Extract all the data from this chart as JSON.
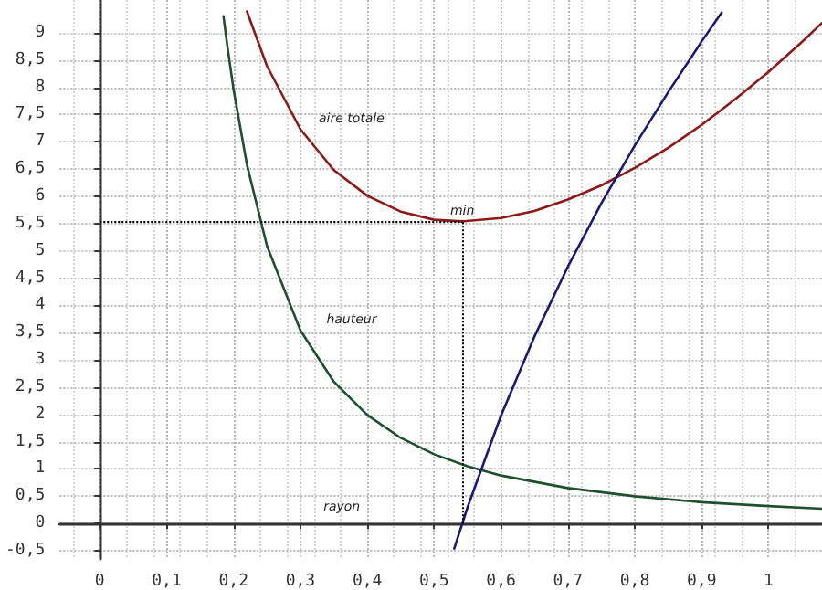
{
  "chart_data": {
    "type": "line",
    "xlim": [
      -0.06,
      1.08
    ],
    "ylim": [
      -0.65,
      9.6
    ],
    "xticks": [
      0,
      {
        "value": 0.1,
        "label": "0,1"
      },
      {
        "value": 0.2,
        "label": "0,2"
      },
      {
        "value": 0.3,
        "label": "0,3"
      },
      {
        "value": 0.4,
        "label": "0,4"
      },
      {
        "value": 0.5,
        "label": "0,5"
      },
      {
        "value": 0.6,
        "label": "0,6"
      },
      {
        "value": 0.7,
        "label": "0,7"
      },
      {
        "value": 0.8,
        "label": "0,8"
      },
      {
        "value": 0.9,
        "label": "0,9"
      },
      1
    ],
    "yticks": [
      {
        "value": -0.5,
        "label": "-0,5"
      },
      0,
      {
        "value": 0.5,
        "label": "0,5"
      },
      1,
      {
        "value": 1.5,
        "label": "1,5"
      },
      2,
      {
        "value": 2.5,
        "label": "2,5"
      },
      3,
      {
        "value": 3.5,
        "label": "3,5"
      },
      4,
      {
        "value": 4.5,
        "label": "4,5"
      },
      5,
      {
        "value": 5.5,
        "label": "5,5"
      },
      6,
      {
        "value": 6.5,
        "label": "6,5"
      },
      7,
      {
        "value": 7.5,
        "label": "7,5"
      },
      8,
      {
        "value": 8.5,
        "label": "8,5"
      },
      9
    ],
    "grid": true,
    "legend": false,
    "marker": "none",
    "line_style": "solid",
    "series": [
      {
        "name": "aire totale",
        "color": "#8b1a1a",
        "x": [
          0.22,
          0.25,
          0.3,
          0.35,
          0.4,
          0.45,
          0.5,
          0.542,
          0.6,
          0.65,
          0.7,
          0.75,
          0.8,
          0.85,
          0.9,
          0.95,
          1.0,
          1.05,
          1.08
        ],
        "values": [
          9.39,
          8.39,
          7.23,
          6.48,
          6.01,
          5.72,
          5.57,
          5.54,
          5.6,
          5.73,
          5.94,
          6.2,
          6.52,
          6.89,
          7.31,
          7.78,
          8.28,
          8.83,
          9.18
        ]
      },
      {
        "name": "hauteur",
        "color": "#1f4f2f",
        "x": [
          0.185,
          0.19,
          0.2,
          0.22,
          0.25,
          0.3,
          0.35,
          0.4,
          0.45,
          0.5,
          0.55,
          0.6,
          0.7,
          0.8,
          0.9,
          1.0,
          1.08
        ],
        "values": [
          9.3,
          8.82,
          7.96,
          6.58,
          5.09,
          3.54,
          2.6,
          1.99,
          1.57,
          1.27,
          1.05,
          0.88,
          0.65,
          0.5,
          0.39,
          0.32,
          0.27
        ]
      },
      {
        "color": "#1a1a6e",
        "x": [
          0.53,
          0.55,
          0.6,
          0.65,
          0.7,
          0.75,
          0.8,
          0.85,
          0.9,
          0.93
        ],
        "values": [
          -0.46,
          0.3,
          1.98,
          3.43,
          4.71,
          5.87,
          6.93,
          7.91,
          8.84,
          9.37
        ]
      }
    ],
    "ref_lines": [
      {
        "axis": "y",
        "value": 5.54,
        "line_style": "dotted",
        "color": "#000000"
      },
      {
        "axis": "x",
        "value": 0.542,
        "line_style": "dotted",
        "color": "#000000"
      }
    ],
    "xlabel": "rayon",
    "annotations": [
      {
        "text": "min",
        "x": 0.542,
        "y": 5.54
      }
    ]
  }
}
